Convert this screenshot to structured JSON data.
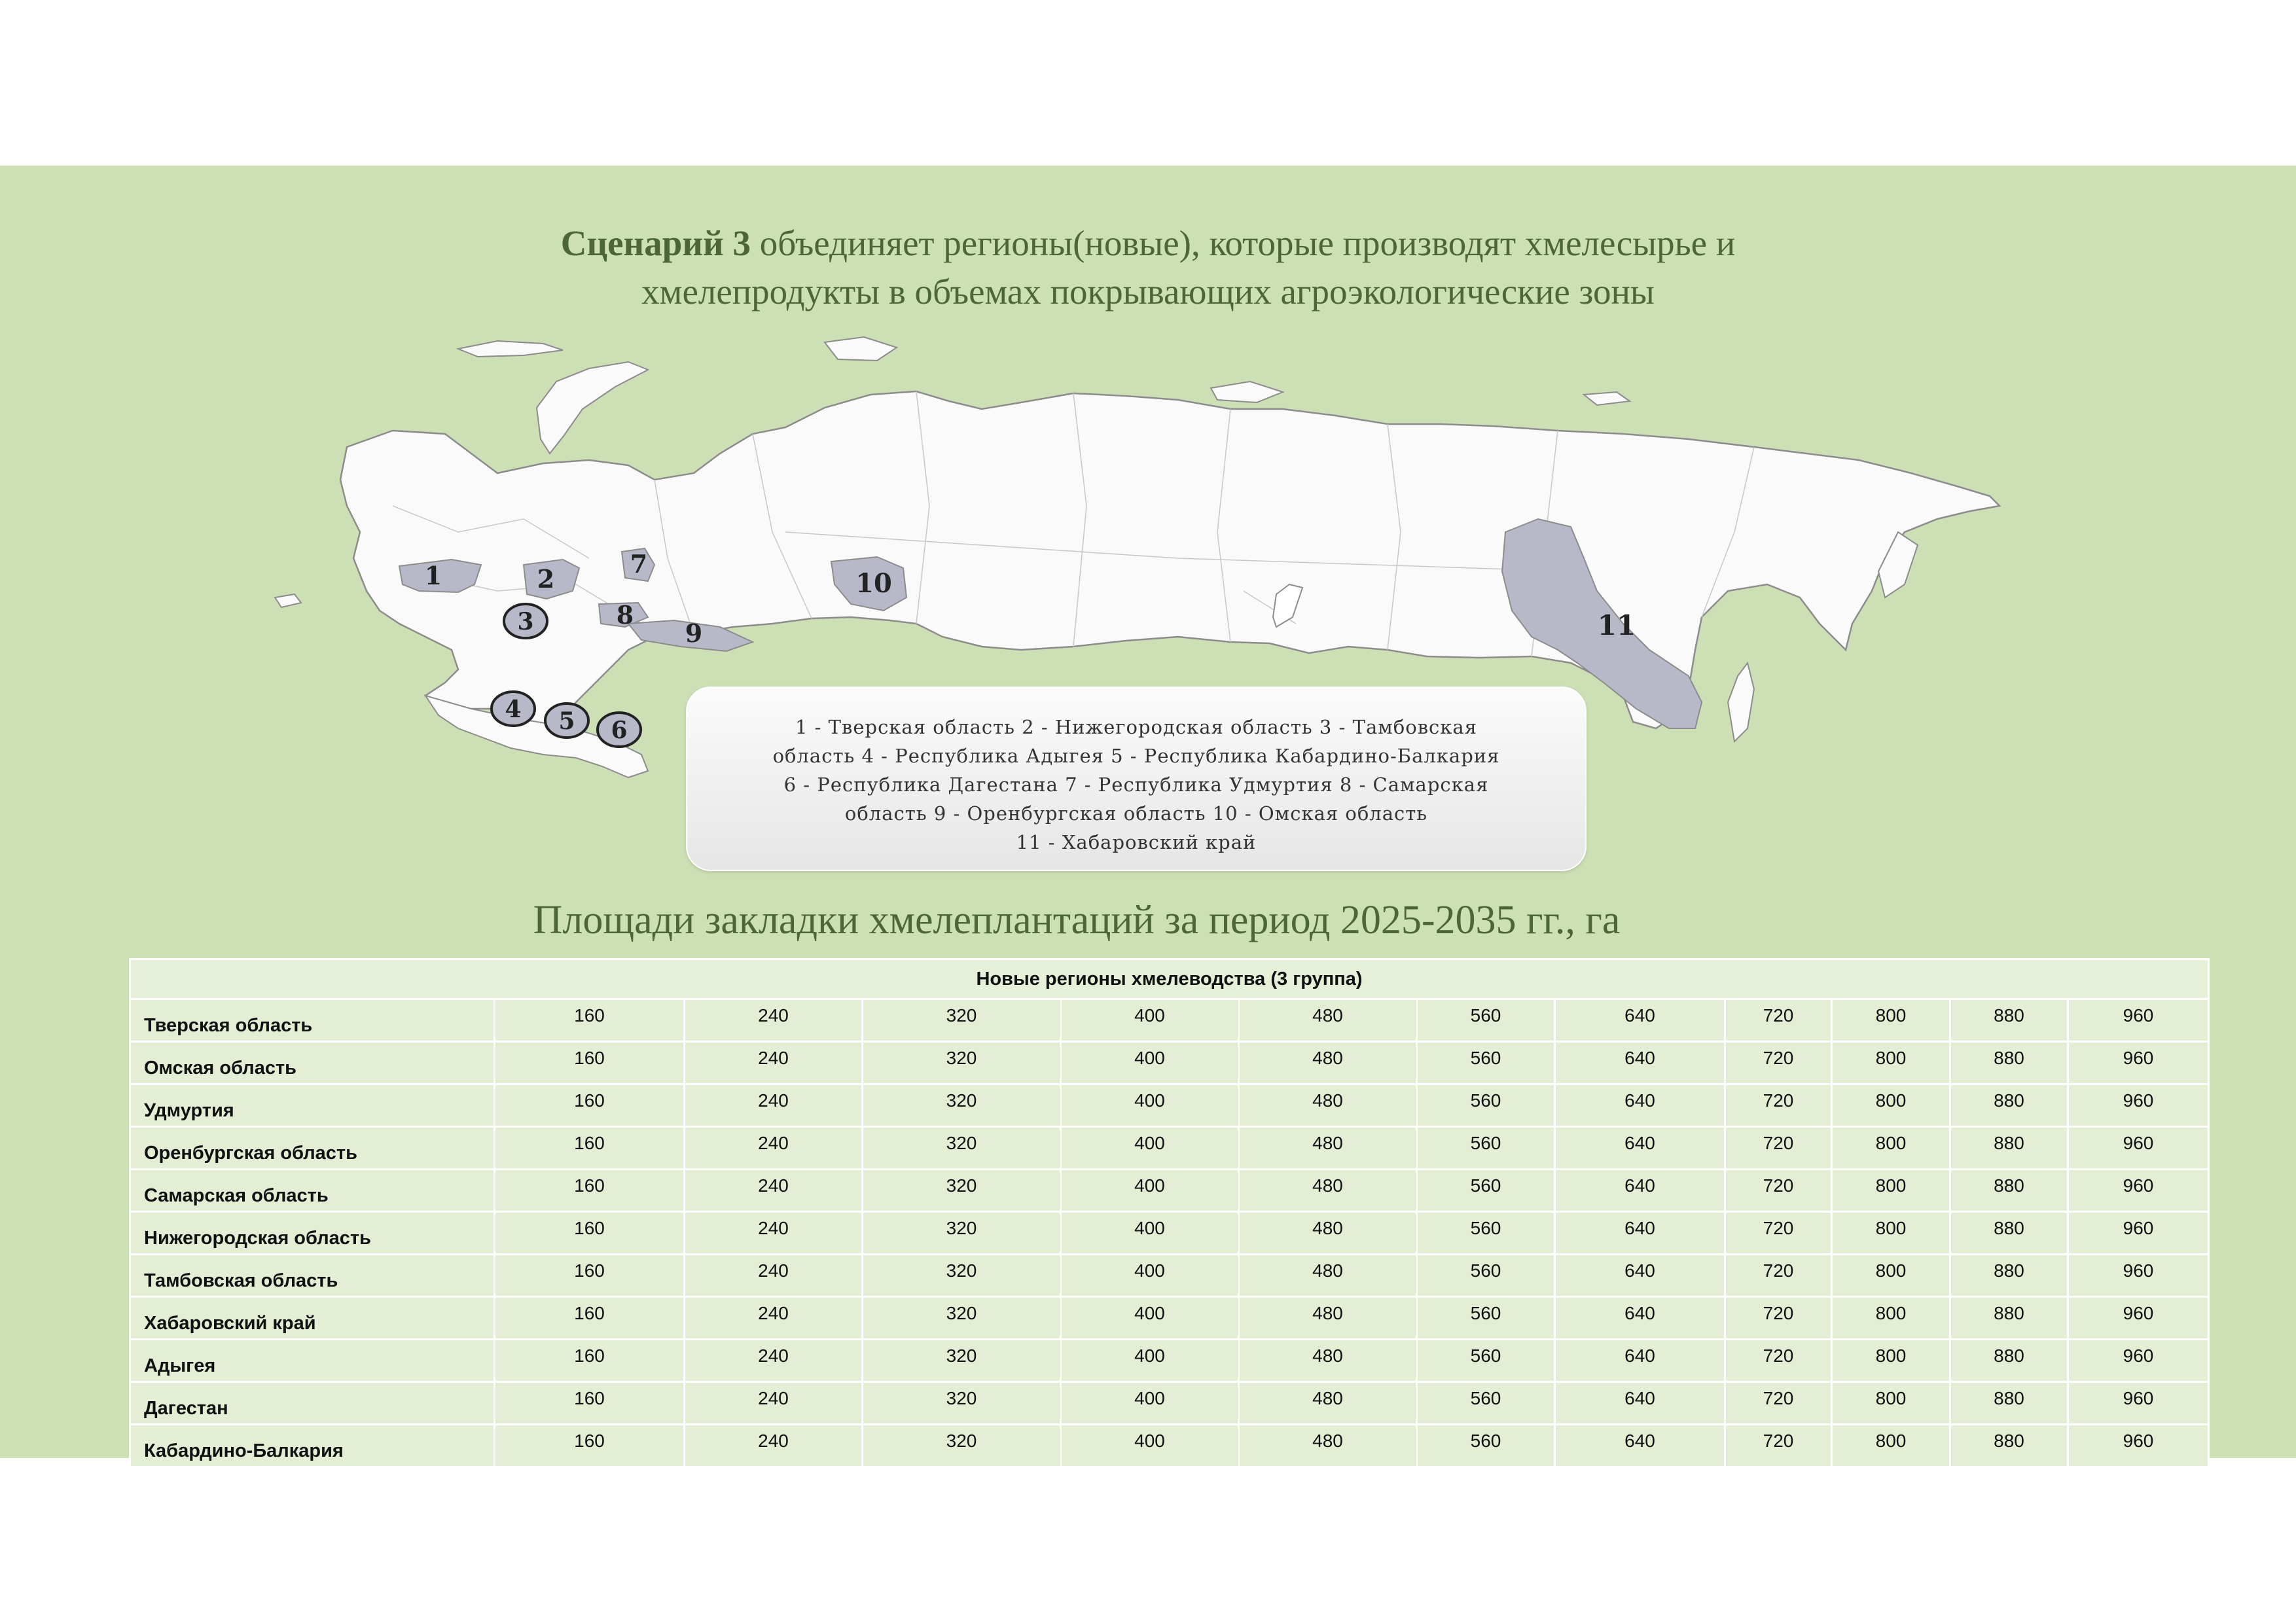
{
  "title": {
    "bold": "Сценарий 3",
    "rest_line1": " объединяет  регионы(новые), которые производят  хмелесырье и",
    "line2": "хмелепродукты в объемах покрывающих агроэкологические зоны"
  },
  "map": {
    "markers": [
      "1",
      "2",
      "3",
      "4",
      "5",
      "6",
      "7",
      "8",
      "9",
      "10",
      "11"
    ]
  },
  "legend": "1 - Тверская область 2 - Нижегородская область 3 - Тамбовская\nобласть 4 - Республика Адыгея 5 - Республика Кабардино-Балкария\n6  - Республика Дагестана 7 - Республика Удмуртия 8 - Самарская\nобласть 9 - Оренбургская область 10 - Омская область\n11 - Хабаровский край",
  "table_title": "Площади закладки хмелеплантаций за период 2025-2035 гг., га",
  "table": {
    "header": "Новые регионы хмелеводства (3 группа)",
    "rows": [
      {
        "name": "Тверская область",
        "values": [
          "160",
          "240",
          "320",
          "400",
          "480",
          "560",
          "640",
          "720",
          "800",
          "880",
          "960"
        ]
      },
      {
        "name": "Омская область",
        "values": [
          "160",
          "240",
          "320",
          "400",
          "480",
          "560",
          "640",
          "720",
          "800",
          "880",
          "960"
        ]
      },
      {
        "name": "Удмуртия",
        "values": [
          "160",
          "240",
          "320",
          "400",
          "480",
          "560",
          "640",
          "720",
          "800",
          "880",
          "960"
        ]
      },
      {
        "name": "Оренбургская область",
        "values": [
          "160",
          "240",
          "320",
          "400",
          "480",
          "560",
          "640",
          "720",
          "800",
          "880",
          "960"
        ]
      },
      {
        "name": "Самарская область",
        "values": [
          "160",
          "240",
          "320",
          "400",
          "480",
          "560",
          "640",
          "720",
          "800",
          "880",
          "960"
        ]
      },
      {
        "name": "Нижегородская область",
        "values": [
          "160",
          "240",
          "320",
          "400",
          "480",
          "560",
          "640",
          "720",
          "800",
          "880",
          "960"
        ]
      },
      {
        "name": "Тамбовская область",
        "values": [
          "160",
          "240",
          "320",
          "400",
          "480",
          "560",
          "640",
          "720",
          "800",
          "880",
          "960"
        ]
      },
      {
        "name": "Хабаровский край",
        "values": [
          "160",
          "240",
          "320",
          "400",
          "480",
          "560",
          "640",
          "720",
          "800",
          "880",
          "960"
        ]
      },
      {
        "name": "Адыгея",
        "values": [
          "160",
          "240",
          "320",
          "400",
          "480",
          "560",
          "640",
          "720",
          "800",
          "880",
          "960"
        ]
      },
      {
        "name": "Дагестан",
        "values": [
          "160",
          "240",
          "320",
          "400",
          "480",
          "560",
          "640",
          "720",
          "800",
          "880",
          "960"
        ]
      },
      {
        "name": "Кабардино-Балкария",
        "values": [
          "160",
          "240",
          "320",
          "400",
          "480",
          "560",
          "640",
          "720",
          "800",
          "880",
          "960"
        ]
      }
    ]
  }
}
